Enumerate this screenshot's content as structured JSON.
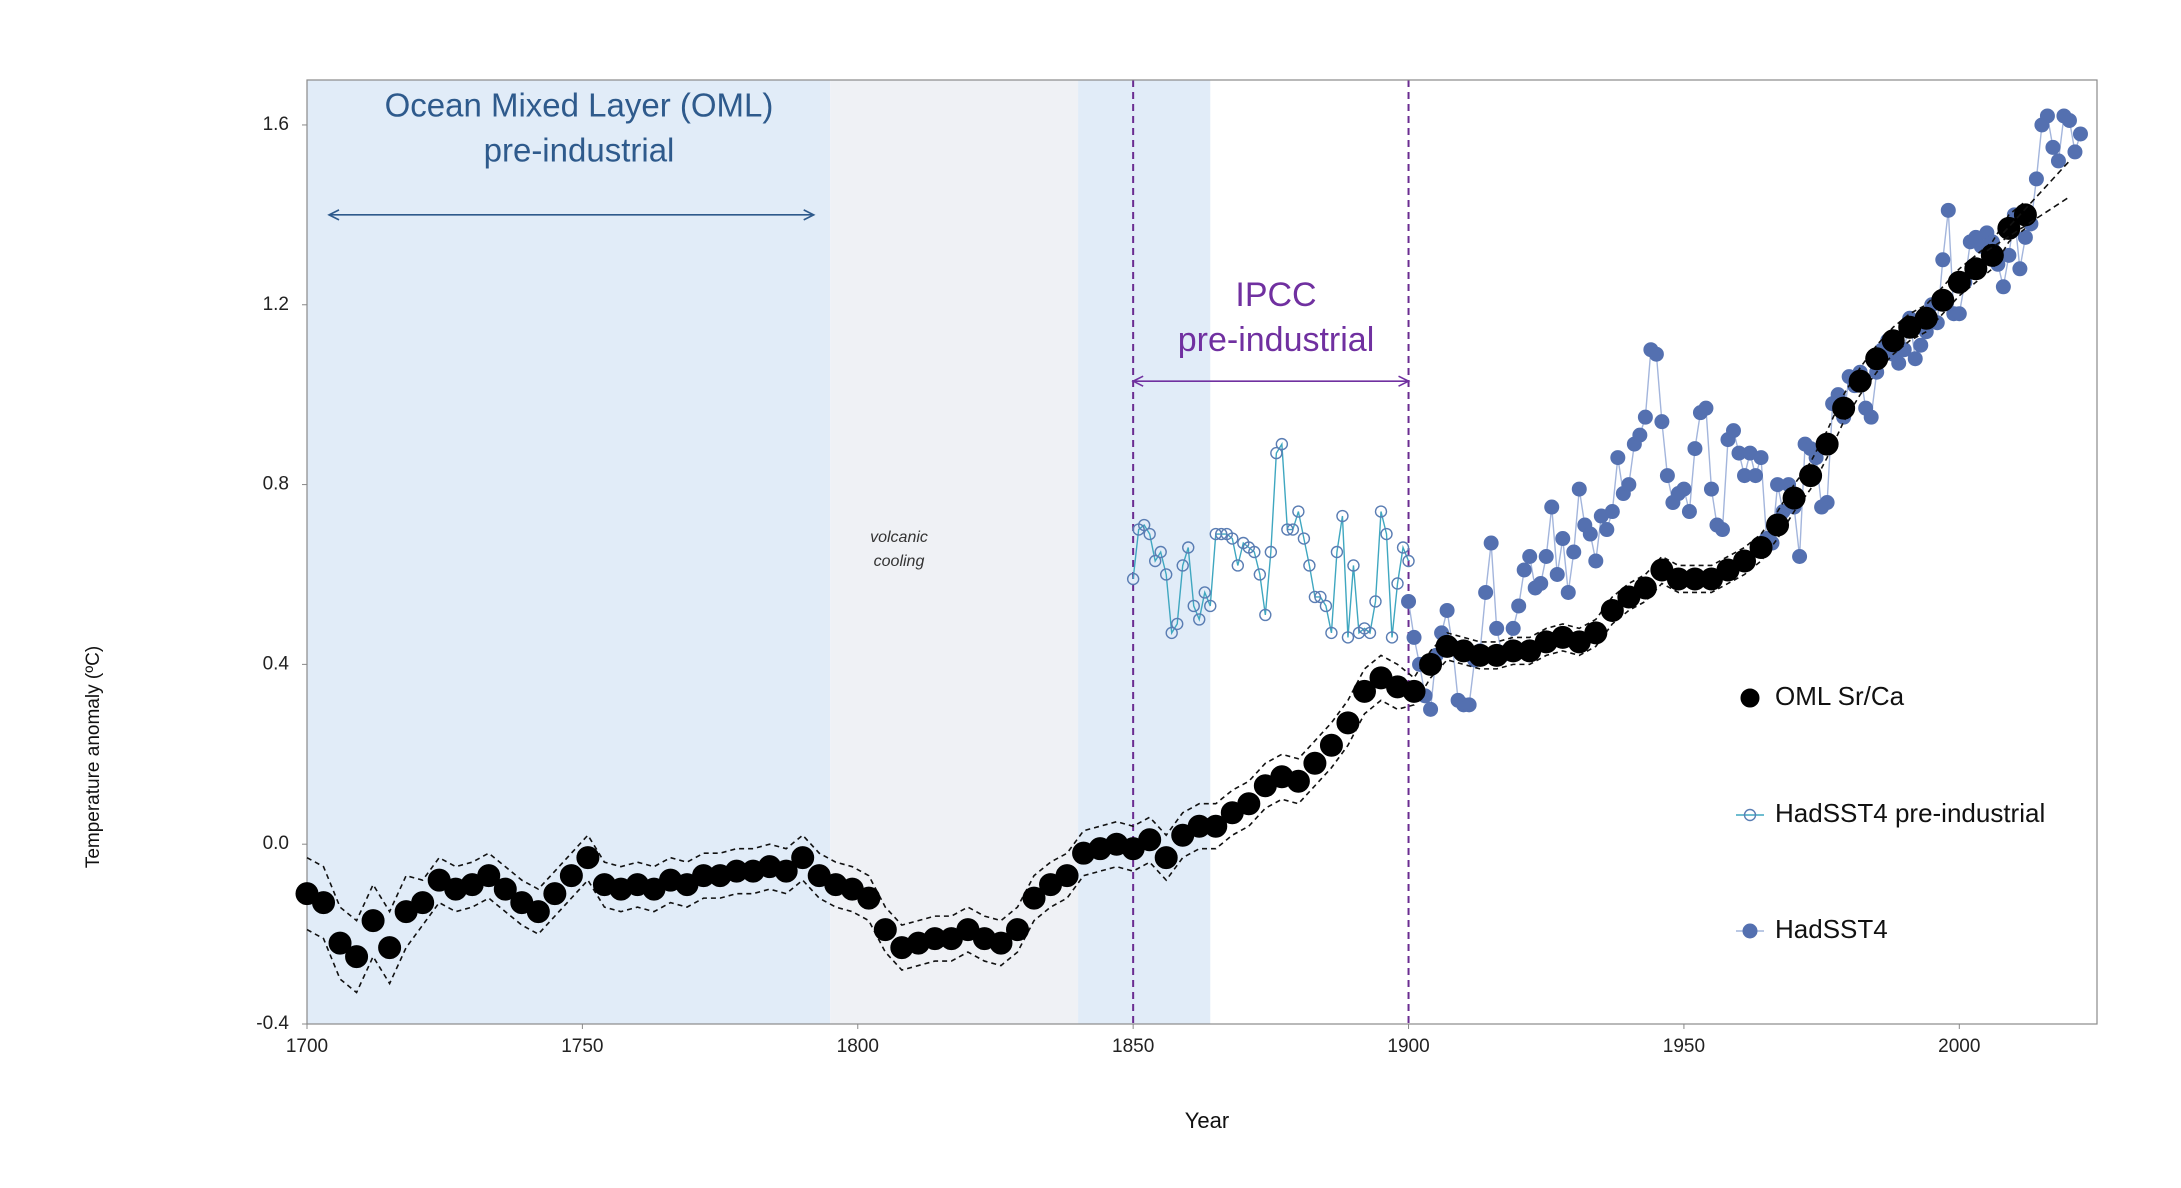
{
  "chart_data": {
    "type": "scatter",
    "xlabel": "Year",
    "ylabel": "Temperature  anomaly (ºC)",
    "xlim": [
      1700,
      2025
    ],
    "ylim": [
      -0.4,
      1.7
    ],
    "xticks": [
      1700,
      1750,
      1800,
      1850,
      1900,
      1950,
      2000
    ],
    "yticks": [
      -0.4,
      {
        "value": 0,
        "label": "0.0"
      },
      0.4,
      0.8,
      1.2,
      1.6
    ],
    "grid": false,
    "legend": "right",
    "regions": [
      {
        "x": [
          1700,
          1795
        ],
        "color": "#e1ecf8"
      },
      {
        "x": [
          1795,
          1840
        ],
        "color": "#eff1f5"
      },
      {
        "x": [
          1840,
          1864
        ],
        "color": "#e1ecf8"
      }
    ],
    "vlines": [
      {
        "x": 1850,
        "color": "#6a2c91"
      },
      {
        "x": 1900,
        "color": "#6a2c91"
      }
    ],
    "arrows": [
      {
        "x": [
          1704,
          1792
        ],
        "y": 1.4,
        "color": "#2e5a8c"
      },
      {
        "x": [
          1850,
          1900
        ],
        "y": 1.03,
        "color": "#7030a0"
      }
    ],
    "annotations": [
      {
        "lines": [
          "Ocean Mixed Layer (OML)",
          "pre-industrial"
        ],
        "color": "#2e5a8c"
      },
      {
        "lines": [
          "IPCC",
          "pre-industrial"
        ],
        "color": "#7030a0"
      },
      {
        "lines": [
          "volcanic",
          "cooling"
        ],
        "color": "#333333"
      }
    ],
    "trend_lines": [
      {
        "x": [
          2008,
          2020
        ],
        "y": [
          1.36,
          1.52
        ]
      },
      {
        "x": [
          2005,
          2020
        ],
        "y": [
          1.32,
          1.44
        ]
      }
    ],
    "series": [
      {
        "name": "OML Sr/Ca",
        "color": "#000000",
        "marker": "filled",
        "x": [
          1700,
          1703,
          1706,
          1709,
          1712,
          1715,
          1718,
          1721,
          1724,
          1727,
          1730,
          1733,
          1736,
          1739,
          1742,
          1745,
          1748,
          1751,
          1754,
          1757,
          1760,
          1763,
          1766,
          1769,
          1772,
          1775,
          1778,
          1781,
          1784,
          1787,
          1790,
          1793,
          1796,
          1799,
          1802,
          1805,
          1808,
          1811,
          1814,
          1817,
          1820,
          1823,
          1826,
          1829,
          1832,
          1835,
          1838,
          1841,
          1844,
          1847,
          1850,
          1853,
          1856,
          1859,
          1862,
          1865,
          1868,
          1871,
          1874,
          1877,
          1880,
          1883,
          1886,
          1889,
          1892,
          1895,
          1898,
          1901,
          1904,
          1907,
          1910,
          1913,
          1916,
          1919,
          1922,
          1925,
          1928,
          1931,
          1934,
          1937,
          1940,
          1943,
          1946,
          1949,
          1952,
          1955,
          1958,
          1961,
          1964,
          1967,
          1970,
          1973,
          1976,
          1979,
          1982,
          1985,
          1988,
          1991,
          1994,
          1997,
          2000,
          2003,
          2006,
          2009,
          2012
        ],
        "values": [
          -0.11,
          -0.13,
          -0.22,
          -0.25,
          -0.17,
          -0.23,
          -0.15,
          -0.13,
          -0.08,
          -0.1,
          -0.09,
          -0.07,
          -0.1,
          -0.13,
          -0.15,
          -0.11,
          -0.07,
          -0.03,
          -0.09,
          -0.1,
          -0.09,
          -0.1,
          -0.08,
          -0.09,
          -0.07,
          -0.07,
          -0.06,
          -0.06,
          -0.05,
          -0.06,
          -0.03,
          -0.07,
          -0.09,
          -0.1,
          -0.12,
          -0.19,
          -0.23,
          -0.22,
          -0.21,
          -0.21,
          -0.19,
          -0.21,
          -0.22,
          -0.19,
          -0.12,
          -0.09,
          -0.07,
          -0.02,
          -0.01,
          0.0,
          -0.01,
          0.01,
          -0.03,
          0.02,
          0.04,
          0.04,
          0.07,
          0.09,
          0.13,
          0.15,
          0.14,
          0.18,
          0.22,
          0.27,
          0.34,
          0.37,
          0.35,
          0.34,
          0.4,
          0.44,
          0.43,
          0.42,
          0.42,
          0.43,
          0.43,
          0.45,
          0.46,
          0.45,
          0.47,
          0.52,
          0.55,
          0.57,
          0.61,
          0.59,
          0.59,
          0.59,
          0.61,
          0.63,
          0.66,
          0.71,
          0.77,
          0.82,
          0.89,
          0.97,
          1.03,
          1.08,
          1.12,
          1.15,
          1.17,
          1.21,
          1.25,
          1.28,
          1.31,
          1.37,
          1.4
        ],
        "error": [
          0.08,
          0.08,
          0.08,
          0.08,
          0.08,
          0.08,
          0.08,
          0.05,
          0.05,
          0.05,
          0.05,
          0.05,
          0.05,
          0.05,
          0.05,
          0.05,
          0.05,
          0.05,
          0.05,
          0.05,
          0.05,
          0.05,
          0.05,
          0.05,
          0.05,
          0.05,
          0.05,
          0.05,
          0.05,
          0.05,
          0.05,
          0.05,
          0.05,
          0.05,
          0.05,
          0.05,
          0.05,
          0.05,
          0.05,
          0.05,
          0.05,
          0.05,
          0.05,
          0.05,
          0.05,
          0.05,
          0.05,
          0.05,
          0.05,
          0.05,
          0.05,
          0.05,
          0.05,
          0.05,
          0.05,
          0.05,
          0.05,
          0.05,
          0.05,
          0.05,
          0.05,
          0.05,
          0.05,
          0.05,
          0.05,
          0.05,
          0.05,
          0.03,
          0.03,
          0.03,
          0.03,
          0.03,
          0.03,
          0.03,
          0.03,
          0.03,
          0.03,
          0.03,
          0.03,
          0.03,
          0.03,
          0.03,
          0.03,
          0.03,
          0.03,
          0.03,
          0.03,
          0.03,
          0.03,
          0.03,
          0.03,
          0.03,
          0.03,
          0.03,
          0.03,
          0.03,
          0.03,
          0.03,
          0.03,
          0.03,
          0.03,
          0.03,
          0.03,
          0.03,
          0.03
        ]
      },
      {
        "name": "HadSST4 pre-industrial",
        "color": "#3fa7c0",
        "marker_color": "#5a7db3",
        "marker": "open",
        "x": [
          1850,
          1851,
          1852,
          1853,
          1854,
          1855,
          1856,
          1857,
          1858,
          1859,
          1860,
          1861,
          1862,
          1863,
          1864,
          1865,
          1866,
          1867,
          1868,
          1869,
          1870,
          1871,
          1872,
          1873,
          1874,
          1875,
          1876,
          1877,
          1878,
          1879,
          1880,
          1881,
          1882,
          1883,
          1884,
          1885,
          1886,
          1887,
          1888,
          1889,
          1890,
          1891,
          1892,
          1893,
          1894,
          1895,
          1896,
          1897,
          1898,
          1899,
          1900
        ],
        "values": [
          0.59,
          0.7,
          0.71,
          0.69,
          0.63,
          0.65,
          0.6,
          0.47,
          0.49,
          0.62,
          0.66,
          0.53,
          0.5,
          0.56,
          0.53,
          0.69,
          0.69,
          0.69,
          0.68,
          0.62,
          0.67,
          0.66,
          0.65,
          0.6,
          0.51,
          0.65,
          0.87,
          0.89,
          0.7,
          0.7,
          0.74,
          0.68,
          0.62,
          0.55,
          0.55,
          0.53,
          0.47,
          0.65,
          0.73,
          0.46,
          0.62,
          0.47,
          0.48,
          0.47,
          0.54,
          0.74,
          0.69,
          0.46,
          0.58,
          0.66,
          0.63
        ]
      },
      {
        "name": "HadSST4",
        "color": "#a3b5dc",
        "marker_color": "#5470b0",
        "marker": "filled",
        "x": [
          1900,
          1901,
          1902,
          1903,
          1904,
          1905,
          1906,
          1907,
          1908,
          1909,
          1910,
          1911,
          1912,
          1913,
          1914,
          1915,
          1916,
          1917,
          1918,
          1919,
          1920,
          1921,
          1922,
          1923,
          1924,
          1925,
          1926,
          1927,
          1928,
          1929,
          1930,
          1931,
          1932,
          1933,
          1934,
          1935,
          1936,
          1937,
          1938,
          1939,
          1940,
          1941,
          1942,
          1943,
          1944,
          1945,
          1946,
          1947,
          1948,
          1949,
          1950,
          1951,
          1952,
          1953,
          1954,
          1955,
          1956,
          1957,
          1958,
          1959,
          1960,
          1961,
          1962,
          1963,
          1964,
          1965,
          1966,
          1967,
          1968,
          1969,
          1970,
          1971,
          1972,
          1973,
          1974,
          1975,
          1976,
          1977,
          1978,
          1979,
          1980,
          1981,
          1982,
          1983,
          1984,
          1985,
          1986,
          1987,
          1988,
          1989,
          1990,
          1991,
          1992,
          1993,
          1994,
          1995,
          1996,
          1997,
          1998,
          1999,
          2000,
          2001,
          2002,
          2003,
          2004,
          2005,
          2006,
          2007,
          2008,
          2009,
          2010,
          2011,
          2012,
          2013,
          2014,
          2015,
          2016,
          2017,
          2018,
          2019,
          2020,
          2021,
          2022
        ],
        "values": [
          0.54,
          0.46,
          0.4,
          0.33,
          0.3,
          0.42,
          0.47,
          0.52,
          0.44,
          0.32,
          0.31,
          0.31,
          0.41,
          0.43,
          0.56,
          0.67,
          0.48,
          0.42,
          0.43,
          0.48,
          0.53,
          0.61,
          0.64,
          0.57,
          0.58,
          0.64,
          0.75,
          0.6,
          0.68,
          0.56,
          0.65,
          0.79,
          0.71,
          0.69,
          0.63,
          0.73,
          0.7,
          0.74,
          0.86,
          0.78,
          0.8,
          0.89,
          0.91,
          0.95,
          1.1,
          1.09,
          0.94,
          0.82,
          0.76,
          0.78,
          0.79,
          0.74,
          0.88,
          0.96,
          0.97,
          0.79,
          0.71,
          0.7,
          0.9,
          0.92,
          0.87,
          0.82,
          0.87,
          0.82,
          0.86,
          0.68,
          0.67,
          0.8,
          0.74,
          0.8,
          0.75,
          0.64,
          0.89,
          0.88,
          0.86,
          0.75,
          0.76,
          0.98,
          1.0,
          0.95,
          1.04,
          1.02,
          1.05,
          0.97,
          0.95,
          1.05,
          1.1,
          1.12,
          1.09,
          1.07,
          1.1,
          1.17,
          1.08,
          1.11,
          1.14,
          1.2,
          1.16,
          1.3,
          1.41,
          1.18,
          1.18,
          1.25,
          1.34,
          1.35,
          1.33,
          1.36,
          1.34,
          1.29,
          1.24,
          1.31,
          1.4,
          1.28,
          1.35,
          1.38,
          1.48,
          1.6,
          1.62,
          1.55,
          1.52,
          1.62,
          1.61,
          1.54,
          1.58
        ]
      }
    ]
  }
}
